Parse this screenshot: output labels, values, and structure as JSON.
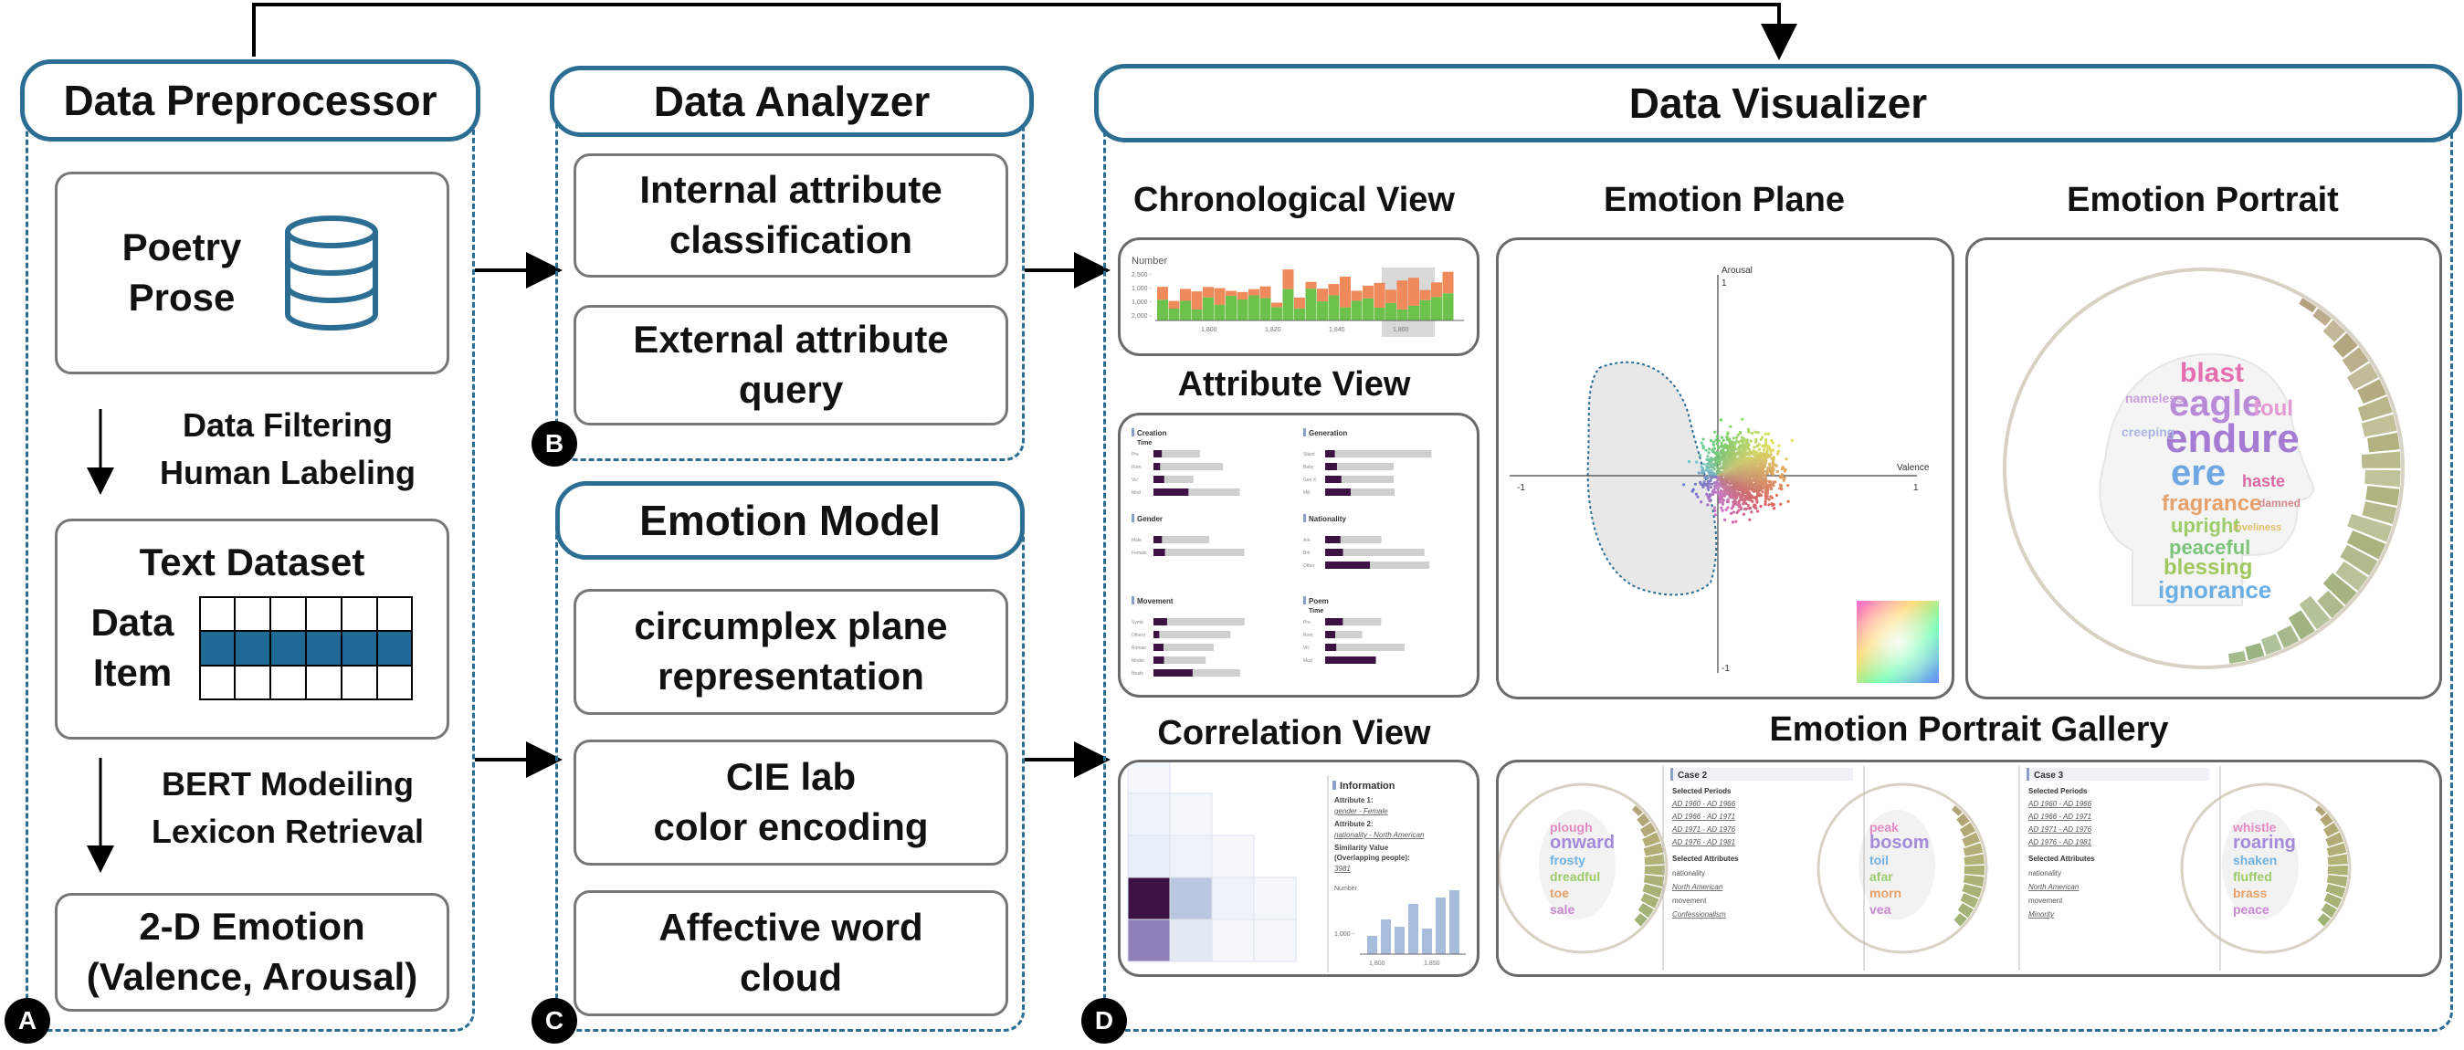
{
  "preprocessor": {
    "header": "Data Preprocessor",
    "source_line1": "Poetry",
    "source_line2": "Prose",
    "step1_line1": "Data Filtering",
    "step1_line2": "Human Labeling",
    "dataset_title": "Text Dataset",
    "dataset_label1": "Data",
    "dataset_label2": "Item",
    "step2_line1": "BERT Modeiling",
    "step2_line2": "Lexicon Retrieval",
    "emotion_line1": "2-D Emotion",
    "emotion_line2": "(Valence, Arousal)",
    "badge": "A"
  },
  "analyzer": {
    "header": "Data Analyzer",
    "box1_line1": "Internal attribute",
    "box1_line2": "classification",
    "box2_line1": "External attribute",
    "box2_line2": "query",
    "badge": "B"
  },
  "emotion_model": {
    "header": "Emotion Model",
    "box1_line1": "circumplex plane",
    "box1_line2": "representation",
    "box2_line1": "CIE lab",
    "box2_line2": "color encoding",
    "box3_line1": "Affective word",
    "box3_line2": "cloud",
    "badge": "C"
  },
  "visualizer": {
    "header": "Data Visualizer",
    "badge": "D",
    "chronological": {
      "title": "Chronological View",
      "ylabel": "Number",
      "yticks": [
        "2,500 -",
        "1,000 -",
        "1,000 -",
        "2,000 -"
      ],
      "xticks": [
        "1,800",
        "1,820",
        "1,840",
        "1,860"
      ]
    },
    "attribute": {
      "title": "Attribute View",
      "groups": [
        {
          "label": "Creation",
          "sub": "Time",
          "rows": [
            "Pre",
            "Rom",
            "Vic",
            "Mod"
          ]
        },
        {
          "label": "Generation",
          "sub": "",
          "rows": [
            "Silent",
            "Baby",
            "Gen X",
            "Mill"
          ]
        },
        {
          "label": "Gender",
          "sub": "",
          "rows": [
            "Male",
            "Female"
          ]
        },
        {
          "label": "Nationality",
          "sub": "",
          "rows": [
            "Am",
            "Brit",
            "Other"
          ]
        },
        {
          "label": "Movement",
          "sub": "",
          "rows": [
            "Symb",
            "Others",
            "Roman",
            "Moder",
            "Beats"
          ]
        },
        {
          "label": "Poem",
          "sub": "Time",
          "rows": [
            "Pre",
            "Rom",
            "Vic",
            "Mod"
          ]
        }
      ]
    },
    "correlation": {
      "title": "Correlation View",
      "info_header": "Information",
      "attr1_label": "Attribute 1:",
      "attr1_value": "gender - Female",
      "attr2_label": "Attribute 2:",
      "attr2_value": "nationality - North American",
      "sim_label1": "Similarity Value",
      "sim_label2": "(Overlapping people):",
      "sim_value": "3981",
      "number_label": "Number",
      "ytick": "1,000 -",
      "xticks": [
        "1,800",
        "1,850"
      ]
    },
    "emotion_plane": {
      "title": "Emotion Plane",
      "y_axis": "Arousal",
      "x_axis": "Valence",
      "ticks": {
        "top": "1",
        "bottom": "-1",
        "left": "-1",
        "right": "1"
      }
    },
    "emotion_portrait": {
      "title": "Emotion Portrait",
      "words": [
        "blast",
        "eagle",
        "endure",
        "ere",
        "fragrance",
        "upright",
        "peaceful",
        "blessing",
        "ignorance",
        "foul",
        "haste",
        "nameless",
        "creeping",
        "damned",
        "loveliness"
      ]
    },
    "gallery": {
      "title": "Emotion Portrait Gallery",
      "portrait_words": [
        [
          "plough",
          "onward",
          "frosty",
          "dreadful",
          "toe",
          "sale"
        ],
        [
          "peak",
          "bosom",
          "toil",
          "afar",
          "morn",
          "vea"
        ],
        [
          "whistle",
          "roaring",
          "shaken",
          "fluffed",
          "brass",
          "peace"
        ]
      ],
      "cases": [
        {
          "name": "Case 2",
          "periods_label": "Selected Periods",
          "periods": [
            "AD 1960 - AD 1966",
            "AD 1966 - AD 1971",
            "AD 1971 - AD 1976",
            "AD 1976 - AD 1981"
          ],
          "attrs_label": "Selected Attributes",
          "attrs": [
            "nationality",
            "North American",
            "movement",
            "Confessionalism"
          ]
        },
        {
          "name": "Case 3",
          "periods_label": "Selected Periods",
          "periods": [
            "AD 1960 - AD 1966",
            "AD 1966 - AD 1971",
            "AD 1971 - AD 1976",
            "AD 1976 - AD 1981"
          ],
          "attrs_label": "Selected Attributes",
          "attrs": [
            "nationality",
            "North American",
            "movement",
            "Minority"
          ]
        }
      ]
    }
  },
  "colors": {
    "accent": "#2c6e93",
    "bar_green": "#6cc24a",
    "bar_orange": "#ef8a5a",
    "dark_purple": "#3c1242"
  }
}
